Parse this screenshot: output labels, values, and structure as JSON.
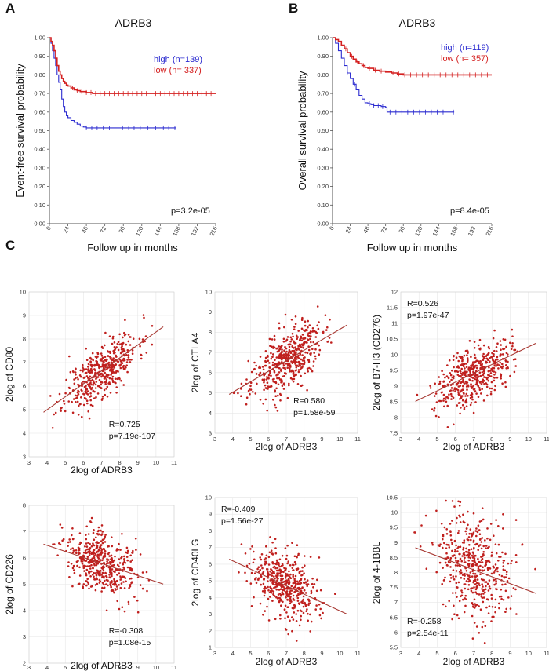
{
  "figure": {
    "panels": [
      {
        "letter": "A"
      },
      {
        "letter": "B"
      },
      {
        "letter": "C"
      }
    ]
  },
  "chart_data": [
    {
      "type": "line",
      "panel": "A",
      "title": "ADRB3",
      "xlabel": "Follow up in months",
      "ylabel": "Event-free survival probability",
      "xlim": [
        0,
        216
      ],
      "ylim": [
        0,
        1
      ],
      "xticks": [
        "0",
        "24",
        "48",
        "72",
        "96",
        "120",
        "144",
        "168",
        "192",
        "216"
      ],
      "yticks": [
        "0.00",
        "0.10",
        "0.20",
        "0.30",
        "0.40",
        "0.50",
        "0.60",
        "0.70",
        "0.80",
        "0.90",
        "1.00"
      ],
      "pvalue": "p=3.2e-05",
      "series": [
        {
          "name": "high (n=139)",
          "color": "#2b2bd0",
          "x": [
            0,
            2,
            4,
            6,
            8,
            10,
            12,
            14,
            16,
            18,
            20,
            22,
            24,
            28,
            32,
            36,
            40,
            44,
            48,
            60,
            72,
            96,
            120,
            144,
            165
          ],
          "y": [
            1.0,
            0.97,
            0.93,
            0.89,
            0.85,
            0.8,
            0.76,
            0.72,
            0.67,
            0.63,
            0.6,
            0.58,
            0.57,
            0.555,
            0.545,
            0.535,
            0.525,
            0.52,
            0.515,
            0.515,
            0.515,
            0.515,
            0.515,
            0.515,
            0.515
          ],
          "censor_x": [
            48,
            55,
            62,
            70,
            78,
            85,
            95,
            103,
            110,
            118,
            128,
            138,
            148,
            155,
            163
          ]
        },
        {
          "name": "low (n= 337)",
          "color": "#d42020",
          "x": [
            0,
            2,
            4,
            6,
            8,
            10,
            12,
            14,
            16,
            18,
            20,
            22,
            24,
            28,
            32,
            36,
            40,
            48,
            56,
            64,
            72,
            96,
            120,
            144,
            168,
            192,
            216
          ],
          "y": [
            1.0,
            0.98,
            0.96,
            0.93,
            0.89,
            0.85,
            0.82,
            0.8,
            0.78,
            0.765,
            0.755,
            0.745,
            0.74,
            0.73,
            0.72,
            0.715,
            0.71,
            0.705,
            0.7,
            0.7,
            0.7,
            0.7,
            0.7,
            0.7,
            0.7,
            0.7,
            0.7
          ],
          "censor_x": [
            30,
            36,
            42,
            48,
            54,
            60,
            66,
            72,
            78,
            84,
            90,
            96,
            102,
            108,
            114,
            120,
            126,
            132,
            138,
            144,
            150,
            156,
            162,
            168,
            174,
            180,
            186,
            192,
            198,
            204,
            210
          ]
        }
      ]
    },
    {
      "type": "line",
      "panel": "B",
      "title": "ADRB3",
      "xlabel": "Follow up in months",
      "ylabel": "Overall survival probability",
      "xlim": [
        0,
        216
      ],
      "ylim": [
        0,
        1
      ],
      "xticks": [
        "0",
        "24",
        "48",
        "72",
        "96",
        "120",
        "144",
        "168",
        "192",
        "216"
      ],
      "yticks": [
        "0.00",
        "0.10",
        "0.20",
        "0.30",
        "0.40",
        "0.50",
        "0.60",
        "0.70",
        "0.80",
        "0.90",
        "1.00"
      ],
      "pvalue": "p=8.4e-05",
      "series": [
        {
          "name": "high (n=119)",
          "color": "#2b2bd0",
          "x": [
            0,
            4,
            8,
            12,
            16,
            20,
            24,
            28,
            32,
            36,
            40,
            44,
            48,
            52,
            56,
            60,
            66,
            72,
            74,
            96,
            120,
            144,
            165
          ],
          "y": [
            1.0,
            0.97,
            0.93,
            0.89,
            0.85,
            0.81,
            0.78,
            0.75,
            0.72,
            0.69,
            0.67,
            0.65,
            0.645,
            0.64,
            0.635,
            0.635,
            0.63,
            0.625,
            0.6,
            0.6,
            0.6,
            0.6,
            0.6
          ],
          "censor_x": [
            20,
            30,
            40,
            50,
            56,
            62,
            68,
            78,
            86,
            94,
            102,
            110,
            118,
            126,
            134,
            142,
            150,
            158,
            164
          ]
        },
        {
          "name": "low (n= 357)",
          "color": "#d42020",
          "x": [
            0,
            4,
            8,
            12,
            16,
            20,
            24,
            28,
            32,
            36,
            40,
            44,
            48,
            56,
            64,
            72,
            80,
            88,
            96,
            120,
            144,
            168,
            192,
            216
          ],
          "y": [
            1.0,
            0.99,
            0.98,
            0.96,
            0.94,
            0.92,
            0.9,
            0.885,
            0.87,
            0.86,
            0.85,
            0.84,
            0.835,
            0.825,
            0.82,
            0.815,
            0.81,
            0.805,
            0.8,
            0.8,
            0.8,
            0.8,
            0.8,
            0.8
          ],
          "censor_x": [
            10,
            18,
            26,
            34,
            42,
            50,
            58,
            66,
            74,
            82,
            90,
            98,
            106,
            114,
            122,
            130,
            138,
            146,
            154,
            162,
            170,
            178,
            186,
            194,
            202,
            210
          ]
        }
      ]
    },
    {
      "type": "scatter",
      "panel": "C",
      "xlabel": "2log of ADRB3",
      "ylabel": "2log of CD80",
      "xlim": [
        3,
        11
      ],
      "ylim": [
        3,
        10
      ],
      "xticks": [
        "3",
        "4",
        "5",
        "6",
        "7",
        "8",
        "9",
        "10",
        "11"
      ],
      "yticks": [
        "3",
        "4",
        "5",
        "6",
        "7",
        "8",
        "9",
        "10"
      ],
      "r": "R=0.725",
      "p": "p=7.19e-107",
      "stat_position": "bottom-right",
      "fit": {
        "slope": 0.55,
        "intercept": 2.8,
        "x_range": [
          3.8,
          10.4
        ]
      },
      "point_generation": {
        "count": 470,
        "x_mean": 7.0,
        "x_sd": 1.0,
        "residual_sd": 0.55,
        "seed": 11
      }
    },
    {
      "type": "scatter",
      "panel": "C",
      "xlabel": "2log of ADRB3",
      "ylabel": "2log of CTLA4",
      "xlim": [
        3,
        11
      ],
      "ylim": [
        3,
        10
      ],
      "xticks": [
        "3",
        "4",
        "5",
        "6",
        "7",
        "8",
        "9",
        "10",
        "11"
      ],
      "yticks": [
        "3",
        "4",
        "5",
        "6",
        "7",
        "8",
        "9",
        "10"
      ],
      "r": "R=0.580",
      "p": "p=1.58e-59",
      "stat_position": "bottom-right",
      "fit": {
        "slope": 0.52,
        "intercept": 2.95,
        "x_range": [
          3.8,
          10.4
        ]
      },
      "point_generation": {
        "count": 470,
        "x_mean": 7.0,
        "x_sd": 1.0,
        "residual_sd": 0.75,
        "seed": 23
      }
    },
    {
      "type": "scatter",
      "panel": "C",
      "xlabel": "2log of ADRB3",
      "ylabel": "2log of B7-H3 (CD276)",
      "xlim": [
        3,
        11
      ],
      "ylim": [
        7.5,
        12
      ],
      "xticks": [
        "3",
        "4",
        "5",
        "6",
        "7",
        "8",
        "9",
        "10",
        "11"
      ],
      "yticks": [
        "7.5",
        "8",
        "8.5",
        "9",
        "9.5",
        "10",
        "10.5",
        "11",
        "11.5",
        "12"
      ],
      "r": "R=0.526",
      "p": "p=1.97e-47",
      "stat_position": "top-left",
      "fit": {
        "slope": 0.28,
        "intercept": 7.45,
        "x_range": [
          3.8,
          10.4
        ]
      },
      "point_generation": {
        "count": 470,
        "x_mean": 7.0,
        "x_sd": 1.0,
        "residual_sd": 0.45,
        "seed": 37
      }
    },
    {
      "type": "scatter",
      "panel": "C",
      "xlabel": "2log of ADRB3",
      "ylabel": "2log of CD226",
      "xlim": [
        3,
        11
      ],
      "ylim": [
        2,
        8
      ],
      "xticks": [
        "3",
        "4",
        "5",
        "6",
        "7",
        "8",
        "9",
        "10",
        "11"
      ],
      "yticks": [
        "2",
        "3",
        "4",
        "5",
        "6",
        "7",
        "8"
      ],
      "r": "R=-0.308",
      "p": "p=1.08e-15",
      "stat_position": "bottom-right",
      "fit": {
        "slope": -0.23,
        "intercept": 7.4,
        "x_range": [
          3.8,
          10.4
        ]
      },
      "point_generation": {
        "count": 470,
        "x_mean": 7.0,
        "x_sd": 1.0,
        "residual_sd": 0.6,
        "seed": 41
      }
    },
    {
      "type": "scatter",
      "panel": "C",
      "xlabel": "2log of ADRB3",
      "ylabel": "2log of CD40LG",
      "xlim": [
        3,
        11
      ],
      "ylim": [
        1,
        10
      ],
      "xticks": [
        "3",
        "4",
        "5",
        "6",
        "7",
        "8",
        "9",
        "10",
        "11"
      ],
      "yticks": [
        "1",
        "2",
        "3",
        "4",
        "5",
        "6",
        "7",
        "8",
        "9",
        "10"
      ],
      "r": "R=-0.409",
      "p": "p=1.56e-27",
      "stat_position": "top-left",
      "fit": {
        "slope": -0.5,
        "intercept": 8.2,
        "x_range": [
          3.8,
          10.4
        ]
      },
      "point_generation": {
        "count": 470,
        "x_mean": 7.0,
        "x_sd": 1.0,
        "residual_sd": 1.0,
        "seed": 53
      }
    },
    {
      "type": "scatter",
      "panel": "C",
      "xlabel": "2log of ADRB3",
      "ylabel": "2log of 4-1BBL",
      "xlim": [
        3,
        11
      ],
      "ylim": [
        5.5,
        10.5
      ],
      "xticks": [
        "3",
        "4",
        "5",
        "6",
        "7",
        "8",
        "9",
        "10",
        "11"
      ],
      "yticks": [
        "5.5",
        "6",
        "6.5",
        "7",
        "7.5",
        "8",
        "8.5",
        "9",
        "9.5",
        "10",
        "10.5"
      ],
      "r": "R=-0.258",
      "p": "p=2.54e-11",
      "stat_position": "bottom-left",
      "fit": {
        "slope": -0.23,
        "intercept": 9.7,
        "x_range": [
          3.8,
          10.4
        ]
      },
      "point_generation": {
        "count": 470,
        "x_mean": 7.0,
        "x_sd": 1.0,
        "residual_sd": 0.85,
        "seed": 67
      }
    }
  ]
}
